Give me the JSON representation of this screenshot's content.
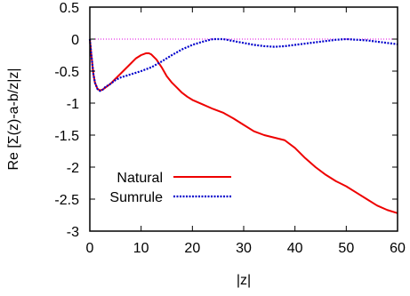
{
  "chart_data": {
    "type": "line",
    "title": "",
    "xlabel": "|z|",
    "ylabel": "Re [Σ(z)-a-b/z|z|",
    "xlim": [
      0,
      60
    ],
    "ylim": [
      -3,
      0.5
    ],
    "xticks": [
      "0",
      "10",
      "20",
      "30",
      "40",
      "50",
      "60"
    ],
    "yticks": [
      "0.5",
      "0",
      "-0.5",
      "-1",
      "-1.5",
      "-2",
      "-2.5",
      "-3"
    ],
    "grid": false,
    "legend_placement": "bottom-left",
    "reference_line": {
      "y": 0,
      "color": "#e000e0"
    },
    "series": [
      {
        "name": "Natural",
        "color": "#ee0000",
        "dash": "solid",
        "x": [
          0,
          0.3,
          0.7,
          1.0,
          1.5,
          2.0,
          2.5,
          3,
          4,
          5,
          6,
          7,
          8,
          9,
          10,
          11,
          11.5,
          12,
          13,
          14,
          15,
          16,
          17,
          18,
          19,
          20,
          22,
          24,
          26,
          28,
          30,
          32,
          34,
          36,
          38,
          40,
          42,
          44,
          46,
          48,
          50,
          52,
          54,
          56,
          58,
          60
        ],
        "y": [
          0,
          -0.25,
          -0.55,
          -0.68,
          -0.78,
          -0.8,
          -0.79,
          -0.76,
          -0.7,
          -0.62,
          -0.54,
          -0.46,
          -0.38,
          -0.3,
          -0.25,
          -0.22,
          -0.22,
          -0.24,
          -0.32,
          -0.44,
          -0.58,
          -0.68,
          -0.76,
          -0.84,
          -0.9,
          -0.95,
          -1.02,
          -1.09,
          -1.15,
          -1.24,
          -1.34,
          -1.44,
          -1.5,
          -1.54,
          -1.58,
          -1.7,
          -1.86,
          -2.0,
          -2.12,
          -2.22,
          -2.3,
          -2.4,
          -2.5,
          -2.6,
          -2.67,
          -2.72
        ]
      },
      {
        "name": "Sumrule",
        "color": "#0000cc",
        "dash": "dotted",
        "x": [
          0,
          0.3,
          0.7,
          1.0,
          1.5,
          2.0,
          2.5,
          3,
          4,
          5,
          6,
          8,
          10,
          12,
          14,
          16,
          18,
          20,
          22,
          24,
          26,
          28,
          30,
          32,
          34,
          36,
          38,
          40,
          42,
          44,
          46,
          48,
          50,
          52,
          54,
          56,
          58,
          60
        ],
        "y": [
          0,
          -0.25,
          -0.55,
          -0.68,
          -0.78,
          -0.81,
          -0.79,
          -0.75,
          -0.7,
          -0.64,
          -0.6,
          -0.55,
          -0.5,
          -0.44,
          -0.35,
          -0.25,
          -0.16,
          -0.09,
          -0.04,
          0.0,
          0.0,
          -0.03,
          -0.06,
          -0.09,
          -0.11,
          -0.12,
          -0.11,
          -0.09,
          -0.07,
          -0.05,
          -0.03,
          -0.01,
          0.0,
          -0.01,
          -0.02,
          -0.04,
          -0.06,
          -0.08
        ]
      }
    ]
  }
}
